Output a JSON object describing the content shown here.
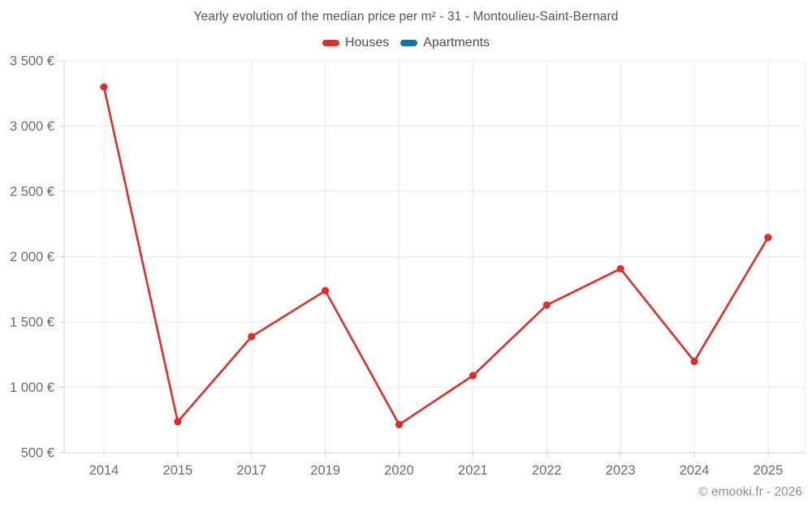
{
  "title": "Yearly evolution of the median price per m² - 31 - Montoulieu-Saint-Bernard",
  "legend": {
    "items": [
      {
        "label": "Houses",
        "color": "#d9302c"
      },
      {
        "label": "Apartments",
        "color": "#1572a6"
      }
    ]
  },
  "footer": "© emooki.fr - 2026",
  "colors": {
    "houses": "#d9302c",
    "apartments": "#1572a6",
    "grid": "#e9e9e9",
    "axis": "#cfcfcf",
    "tick_label": "#6b6b6b",
    "title": "#545454",
    "footer": "#8f8f8f",
    "background": "#ffffff"
  },
  "chart_data": {
    "type": "line",
    "title": "Yearly evolution of the median price per m² - 31 - Montoulieu-Saint-Bernard",
    "categories": [
      "2014",
      "2015",
      "2017",
      "2019",
      "2020",
      "2021",
      "2022",
      "2023",
      "2024",
      "2025"
    ],
    "series": [
      {
        "name": "Houses",
        "color": "#d9302c",
        "values": [
          3300,
          737,
          1388,
          1740,
          715,
          1090,
          1630,
          1908,
          1199,
          2148
        ]
      },
      {
        "name": "Apartments",
        "color": "#1572a6",
        "values": []
      }
    ],
    "xlabel": "",
    "ylabel": "",
    "ylim": [
      500,
      3500
    ],
    "ytick_step": 500,
    "ytick_labels": [
      "500 €",
      "1 000 €",
      "1 500 €",
      "2 000 €",
      "2 500 €",
      "3 000 €",
      "3 500 €"
    ],
    "grid": true,
    "legend_position": "top",
    "marker": "circle"
  }
}
